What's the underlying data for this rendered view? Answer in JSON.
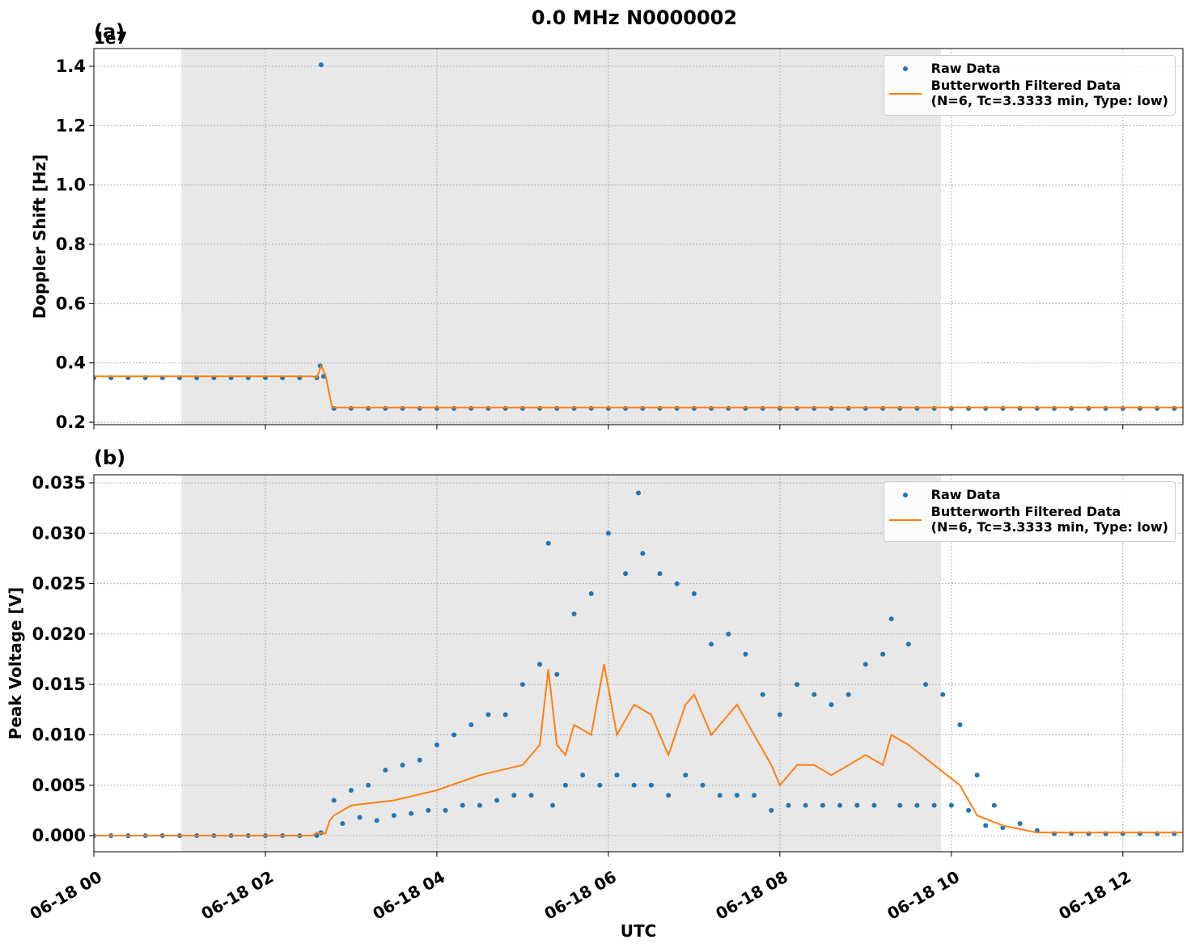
{
  "chart_data": [
    {
      "type": "scatter",
      "title": "0.0 MHz N0000002",
      "panel_label": "(a)",
      "y_label": "Doppler Shift [Hz]",
      "y_offset_label": "1e7",
      "xlim": [
        0,
        12.7
      ],
      "xticks": [
        0,
        2,
        4,
        6,
        8,
        10,
        12
      ],
      "ylim": [
        0.192,
        1.46
      ],
      "yticks": [
        0.2,
        0.4,
        0.6,
        0.8,
        {
          "value": 1,
          "label": "1.0"
        },
        1.2,
        1.4
      ],
      "grid": true,
      "legend": "upper right",
      "shaded_span": [
        1.02,
        9.88
      ],
      "series": [
        {
          "name": "Raw Data",
          "style": "markers",
          "color": "#1f77b4",
          "x": [
            0,
            0.2,
            0.4,
            0.6,
            0.8,
            1,
            1.2,
            1.4,
            1.6,
            1.8,
            2,
            2.2,
            2.4,
            2.6,
            2.64,
            2.65,
            2.68,
            2.8,
            3,
            3.2,
            3.4,
            3.6,
            3.8,
            4,
            4.2,
            4.4,
            4.6,
            4.8,
            5,
            5.2,
            5.4,
            5.6,
            5.8,
            6,
            6.2,
            6.4,
            6.6,
            6.8,
            7,
            7.2,
            7.4,
            7.6,
            7.8,
            8,
            8.2,
            8.4,
            8.6,
            8.8,
            9,
            9.2,
            9.4,
            9.6,
            9.8,
            10,
            10.2,
            10.4,
            10.6,
            10.8,
            11,
            11.2,
            11.4,
            11.6,
            11.8,
            12,
            12.2,
            12.4,
            12.6
          ],
          "values": [
            0.35,
            0.35,
            0.35,
            0.35,
            0.35,
            0.35,
            0.35,
            0.35,
            0.35,
            0.35,
            0.35,
            0.35,
            0.35,
            0.35,
            0.39,
            1.405,
            0.355,
            0.247,
            0.247,
            0.247,
            0.247,
            0.247,
            0.247,
            0.247,
            0.247,
            0.247,
            0.247,
            0.247,
            0.247,
            0.247,
            0.247,
            0.247,
            0.247,
            0.247,
            0.247,
            0.247,
            0.247,
            0.247,
            0.247,
            0.247,
            0.247,
            0.247,
            0.247,
            0.247,
            0.247,
            0.247,
            0.247,
            0.247,
            0.247,
            0.247,
            0.247,
            0.247,
            0.247,
            0.247,
            0.247,
            0.247,
            0.247,
            0.247,
            0.247,
            0.247,
            0.247,
            0.247,
            0.247,
            0.247,
            0.247,
            0.247,
            0.247
          ]
        },
        {
          "name": "Butterworth Filtered Data\n(N=6, Tc=3.3333 min, Type: low)",
          "style": "line",
          "color": "#ff7f0e",
          "x": [
            0,
            2.55,
            2.6,
            2.65,
            2.7,
            2.78,
            2.85,
            12.7
          ],
          "values": [
            0.355,
            0.355,
            0.35,
            0.39,
            0.36,
            0.25,
            0.25,
            0.25
          ]
        }
      ]
    },
    {
      "type": "scatter",
      "panel_label": "(b)",
      "y_label": "Peak Voltage [V]",
      "x_label": "UTC",
      "xlim": [
        0,
        12.7
      ],
      "xticks": [
        {
          "value": 0,
          "label": "06-18 00"
        },
        {
          "value": 2,
          "label": "06-18 02"
        },
        {
          "value": 4,
          "label": "06-18 04"
        },
        {
          "value": 6,
          "label": "06-18 06"
        },
        {
          "value": 8,
          "label": "06-18 08"
        },
        {
          "value": 10,
          "label": "06-18 10"
        },
        {
          "value": 12,
          "label": "06-18 12"
        }
      ],
      "ylim": [
        -0.0016,
        0.0358
      ],
      "yticks": [
        {
          "value": 0,
          "label": "0.000"
        },
        {
          "value": 0.005,
          "label": "0.005"
        },
        {
          "value": 0.01,
          "label": "0.010"
        },
        {
          "value": 0.015,
          "label": "0.015"
        },
        {
          "value": 0.02,
          "label": "0.020"
        },
        {
          "value": 0.025,
          "label": "0.025"
        },
        {
          "value": 0.03,
          "label": "0.030"
        },
        {
          "value": 0.035,
          "label": "0.035"
        }
      ],
      "grid": true,
      "legend": "upper right",
      "shaded_span": [
        1.02,
        9.88
      ],
      "series": [
        {
          "name": "Raw Data",
          "style": "markers",
          "color": "#1f77b4",
          "x": [
            0,
            0.2,
            0.4,
            0.6,
            0.8,
            1,
            1.2,
            1.4,
            1.6,
            1.8,
            2,
            2.2,
            2.4,
            2.6,
            2.65,
            2.8,
            2.9,
            3,
            3.1,
            3.2,
            3.3,
            3.4,
            3.5,
            3.6,
            3.7,
            3.8,
            3.9,
            4,
            4.1,
            4.2,
            4.3,
            4.4,
            4.5,
            4.6,
            4.7,
            4.8,
            4.9,
            5,
            5.1,
            5.2,
            5.3,
            5.35,
            5.4,
            5.5,
            5.6,
            5.7,
            5.8,
            5.9,
            6,
            6.1,
            6.2,
            6.3,
            6.35,
            6.4,
            6.5,
            6.6,
            6.7,
            6.8,
            6.9,
            7,
            7.1,
            7.2,
            7.3,
            7.4,
            7.5,
            7.6,
            7.7,
            7.8,
            7.9,
            8,
            8.1,
            8.2,
            8.3,
            8.4,
            8.5,
            8.6,
            8.7,
            8.8,
            8.9,
            9,
            9.1,
            9.2,
            9.3,
            9.4,
            9.5,
            9.6,
            9.7,
            9.8,
            9.9,
            10,
            10.1,
            10.2,
            10.3,
            10.4,
            10.5,
            10.6,
            10.8,
            11,
            11.2,
            11.4,
            11.6,
            11.8,
            12,
            12.2,
            12.4,
            12.6
          ],
          "values": [
            0,
            0,
            0,
            0,
            0,
            0,
            0,
            0,
            0,
            0,
            0,
            0,
            0,
            0,
            0.0003,
            0.0035,
            0.0012,
            0.0045,
            0.0018,
            0.005,
            0.0015,
            0.0065,
            0.002,
            0.007,
            0.0022,
            0.0075,
            0.0025,
            0.009,
            0.0025,
            0.01,
            0.003,
            0.011,
            0.003,
            0.012,
            0.0035,
            0.012,
            0.004,
            0.015,
            0.004,
            0.017,
            0.029,
            0.003,
            0.016,
            0.005,
            0.022,
            0.006,
            0.024,
            0.005,
            0.03,
            0.006,
            0.026,
            0.005,
            0.034,
            0.028,
            0.005,
            0.026,
            0.004,
            0.025,
            0.006,
            0.024,
            0.005,
            0.019,
            0.004,
            0.02,
            0.004,
            0.018,
            0.004,
            0.014,
            0.0025,
            0.012,
            0.003,
            0.015,
            0.003,
            0.014,
            0.003,
            0.013,
            0.003,
            0.014,
            0.003,
            0.017,
            0.003,
            0.018,
            0.0215,
            0.003,
            0.019,
            0.003,
            0.015,
            0.003,
            0.014,
            0.003,
            0.011,
            0.0025,
            0.006,
            0.001,
            0.003,
            0.0008,
            0.0012,
            0.0005,
            0.0002,
            0.0002,
            0.0002,
            0.0002,
            0.0002,
            0.0002,
            0.0002,
            0.0002
          ]
        },
        {
          "name": "Butterworth Filtered Data\n(N=6, Tc=3.3333 min, Type: low)",
          "style": "line",
          "color": "#ff7f0e",
          "x": [
            0,
            2.55,
            2.6,
            2.7,
            2.75,
            2.8,
            3,
            3.5,
            4,
            4.5,
            5,
            5.2,
            5.3,
            5.4,
            5.5,
            5.6,
            5.8,
            5.95,
            6.1,
            6.3,
            6.5,
            6.7,
            6.9,
            7,
            7.2,
            7.5,
            7.7,
            7.9,
            8,
            8.2,
            8.4,
            8.6,
            9,
            9.2,
            9.3,
            9.5,
            9.8,
            10.1,
            10.3,
            10.6,
            11,
            12.7
          ],
          "values": [
            0,
            0,
            0.0003,
            0.0002,
            0.0015,
            0.002,
            0.003,
            0.0035,
            0.0045,
            0.006,
            0.007,
            0.009,
            0.0165,
            0.009,
            0.008,
            0.011,
            0.01,
            0.017,
            0.01,
            0.013,
            0.012,
            0.008,
            0.013,
            0.014,
            0.01,
            0.013,
            0.01,
            0.007,
            0.005,
            0.007,
            0.007,
            0.006,
            0.008,
            0.007,
            0.01,
            0.009,
            0.007,
            0.005,
            0.002,
            0.001,
            0.0003,
            0.0003
          ]
        }
      ]
    }
  ]
}
